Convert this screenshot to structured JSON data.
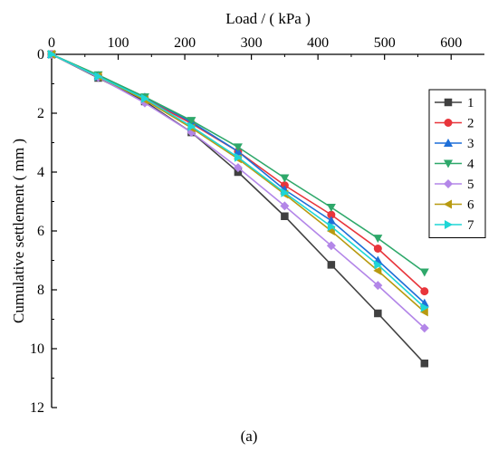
{
  "caption": "(a)",
  "chart_data": {
    "type": "line",
    "xlabel": "Load / ( kPa )",
    "ylabel": "Cumulative settlement ( mm )",
    "x_axis_position": "top",
    "y_axis_reversed": true,
    "xlim": [
      0,
      650
    ],
    "ylim": [
      0,
      12
    ],
    "xticks": [
      0,
      100,
      200,
      300,
      400,
      500,
      600
    ],
    "yticks": [
      0,
      2,
      4,
      6,
      8,
      10,
      12
    ],
    "grid": false,
    "legend_position": "right",
    "x": [
      0,
      70,
      140,
      210,
      280,
      350,
      420,
      490,
      560
    ],
    "series": [
      {
        "name": "1",
        "color": "#404040",
        "marker": "square",
        "values": [
          0,
          0.8,
          1.6,
          2.65,
          4.0,
          5.5,
          7.15,
          8.8,
          10.5
        ]
      },
      {
        "name": "2",
        "color": "#e8353b",
        "marker": "circle",
        "values": [
          0,
          0.75,
          1.5,
          2.35,
          3.3,
          4.45,
          5.45,
          6.6,
          8.05
        ]
      },
      {
        "name": "3",
        "color": "#1e6fd8",
        "marker": "triangle-up",
        "values": [
          0,
          0.72,
          1.45,
          2.3,
          3.3,
          4.6,
          5.65,
          7.0,
          8.45
        ]
      },
      {
        "name": "4",
        "color": "#2ea86a",
        "marker": "triangle-down",
        "values": [
          0,
          0.7,
          1.45,
          2.25,
          3.15,
          4.2,
          5.2,
          6.25,
          7.4
        ]
      },
      {
        "name": "5",
        "color": "#b386e8",
        "marker": "diamond",
        "values": [
          0,
          0.78,
          1.65,
          2.65,
          3.85,
          5.15,
          6.5,
          7.85,
          9.3
        ]
      },
      {
        "name": "6",
        "color": "#b89a10",
        "marker": "triangle-left",
        "values": [
          0,
          0.75,
          1.55,
          2.5,
          3.55,
          4.75,
          6.0,
          7.35,
          8.75
        ]
      },
      {
        "name": "7",
        "color": "#1ed6d6",
        "marker": "triangle-right",
        "values": [
          0,
          0.75,
          1.5,
          2.45,
          3.5,
          4.7,
          5.85,
          7.15,
          8.6
        ]
      }
    ]
  }
}
